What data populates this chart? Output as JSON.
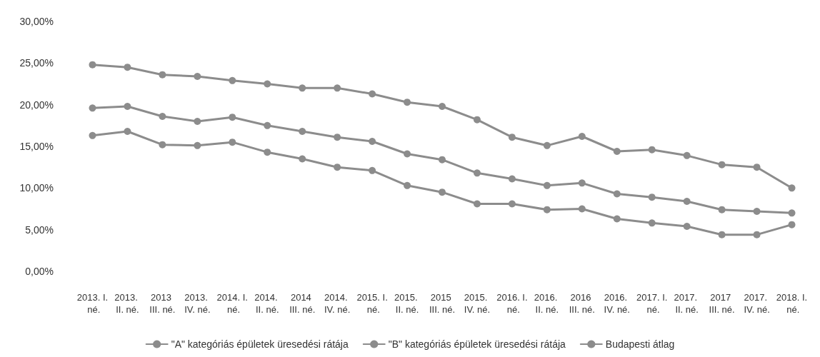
{
  "chart_data": {
    "type": "line",
    "categories": [
      "2013. I. né.",
      "2013. II. né.",
      "2013 III. né.",
      "2013. IV. né.",
      "2014. I. né.",
      "2014. II. né.",
      "2014 III. né.",
      "2014. IV. né.",
      "2015. I. né.",
      "2015. II. né.",
      "2015 III. né.",
      "2015. IV. né.",
      "2016. I. né.",
      "2016. II. né.",
      "2016 III. né.",
      "2016. IV. né.",
      "2017. I. né.",
      "2017. II. né.",
      "2017 III. né.",
      "2017. IV. né.",
      "2018. I. né."
    ],
    "series": [
      {
        "name": "\"A\" kategóriás épületek üresedési rátája",
        "color": "#8c8c8c",
        "values": [
          16.3,
          16.8,
          15.2,
          15.1,
          15.5,
          14.3,
          13.5,
          12.5,
          12.1,
          10.3,
          9.5,
          8.1,
          8.1,
          7.4,
          7.5,
          6.3,
          5.8,
          5.4,
          4.4,
          4.4,
          5.6
        ]
      },
      {
        "name": "\"B\" kategóriás épületek üresedési rátája",
        "color": "#8c8c8c",
        "values": [
          24.8,
          24.5,
          23.6,
          23.4,
          22.9,
          22.5,
          22.0,
          22.0,
          21.3,
          20.3,
          19.8,
          18.2,
          16.1,
          15.1,
          16.2,
          14.4,
          14.6,
          13.9,
          12.8,
          12.5,
          10.0
        ]
      },
      {
        "name": "Budapesti átlag",
        "color": "#8c8c8c",
        "values": [
          19.6,
          19.8,
          18.6,
          18.0,
          18.5,
          17.5,
          16.8,
          16.1,
          15.6,
          14.1,
          13.4,
          11.8,
          11.1,
          10.3,
          10.6,
          9.3,
          8.9,
          8.4,
          7.4,
          7.2,
          7.0
        ]
      }
    ],
    "ylim": [
      0,
      30
    ],
    "yticks": [
      {
        "value": 0,
        "label": "0,00%"
      },
      {
        "value": 5,
        "label": "5,00%"
      },
      {
        "value": 10,
        "label": "10,00%"
      },
      {
        "value": 15,
        "label": "15,00%"
      },
      {
        "value": 20,
        "label": "20,00%"
      },
      {
        "value": 25,
        "label": "25,00%"
      },
      {
        "value": 30,
        "label": "30,00%"
      }
    ],
    "grid": false,
    "legend": "bottom",
    "marker": "circle",
    "line_style": "solid"
  }
}
